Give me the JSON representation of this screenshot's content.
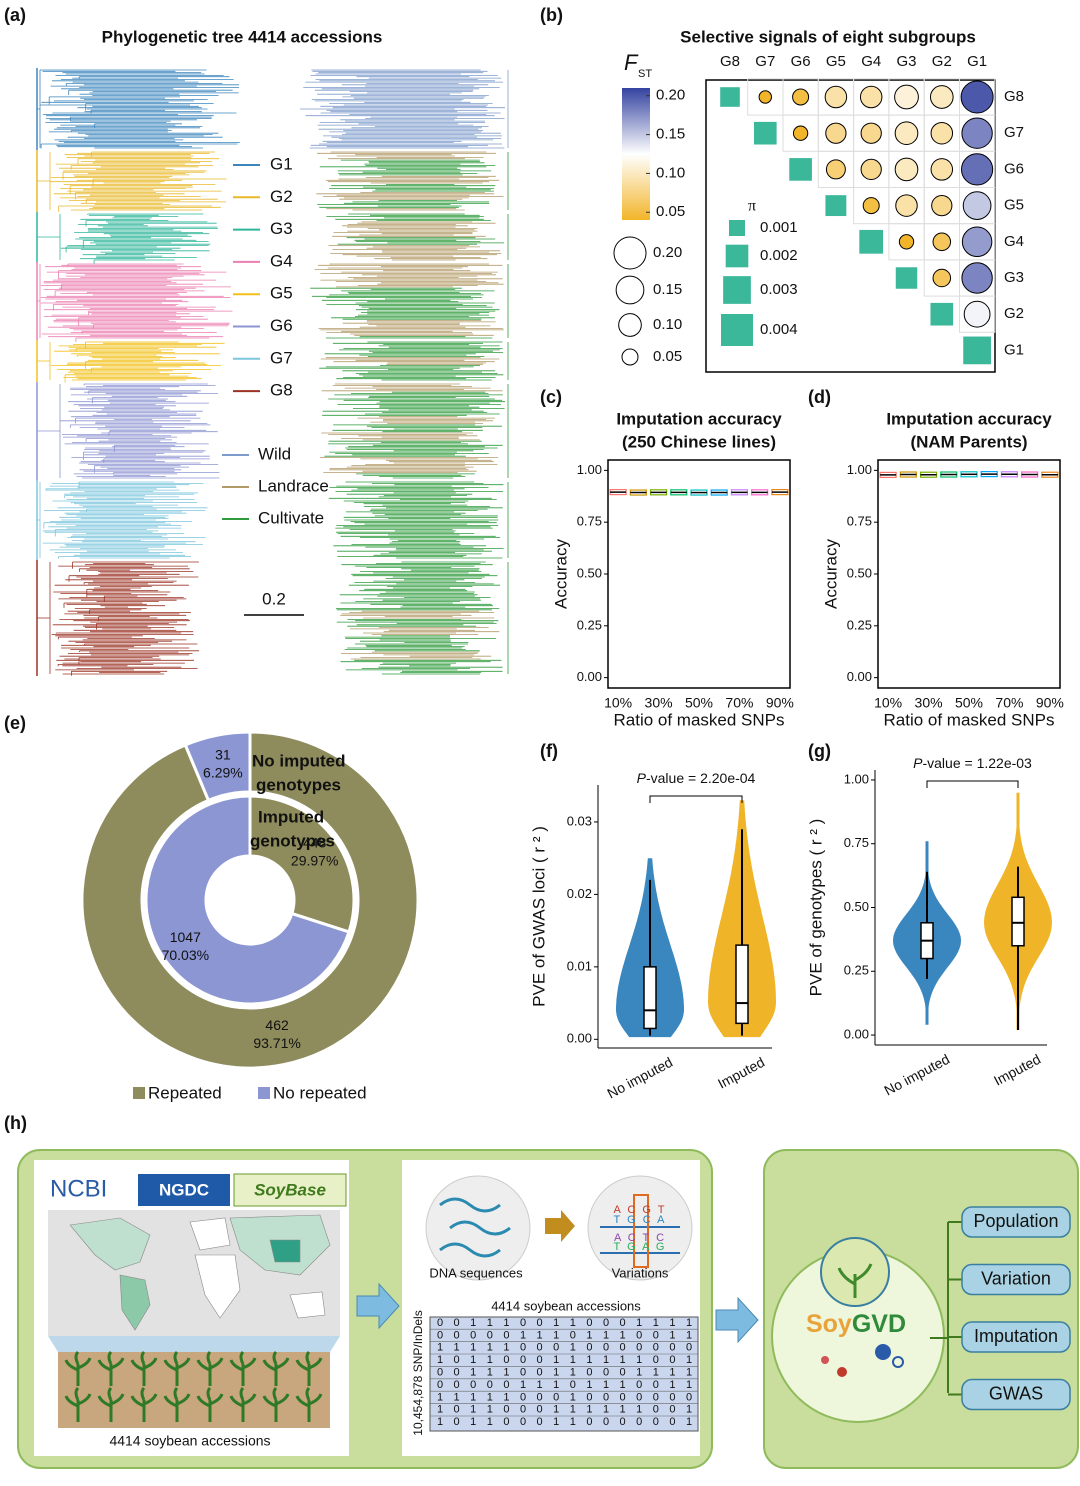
{
  "a": {
    "label": "(a)",
    "title": "Phylogenetic tree 4414 accessions",
    "groups": [
      {
        "name": "G1",
        "color": "#3d86bd"
      },
      {
        "name": "G2",
        "color": "#e8b82a"
      },
      {
        "name": "G3",
        "color": "#2fb59a"
      },
      {
        "name": "G4",
        "color": "#ec7fb0"
      },
      {
        "name": "G5",
        "color": "#f2c01a"
      },
      {
        "name": "G6",
        "color": "#8d95d2"
      },
      {
        "name": "G7",
        "color": "#7cc6de"
      },
      {
        "name": "G8",
        "color": "#9b3325"
      }
    ],
    "types": [
      {
        "name": "Wild",
        "color": "#7e9ccb"
      },
      {
        "name": "Landrace",
        "color": "#b39b68"
      },
      {
        "name": "Cultivate",
        "color": "#2f9b3c"
      }
    ],
    "scale_label": "0.2"
  },
  "b": {
    "label": "(b)",
    "title": "Selective signals of eight  subgroups",
    "fst_title": "F",
    "fst_sub": "ST",
    "fst_lim": [
      0.04,
      0.21
    ],
    "fst_ticks": [
      {
        "value": 0.2,
        "label": "0.20"
      },
      0.15,
      {
        "value": 0.1,
        "label": "0.10"
      },
      0.05
    ],
    "fst_colors": [
      "#f2b52a",
      "#ffffff",
      "#3443a0"
    ],
    "size_legend": [
      {
        "value": 0.2,
        "label": "0.20"
      },
      0.15,
      {
        "value": 0.1,
        "label": "0.10"
      },
      0.05
    ],
    "pi_title": "π",
    "pi_legend": [
      0.001,
      0.002,
      0.003,
      0.004
    ],
    "pi_color": "#3bb79a",
    "groups": [
      "G8",
      "G7",
      "G6",
      "G5",
      "G4",
      "G3",
      "G2",
      "G1"
    ],
    "fst": [
      [
        null,
        0.03,
        0.05,
        0.09,
        0.09,
        0.11,
        0.1,
        0.2
      ],
      [
        null,
        null,
        0.04,
        0.08,
        0.08,
        0.1,
        0.09,
        0.18
      ],
      [
        null,
        null,
        null,
        0.07,
        0.08,
        0.1,
        0.09,
        0.19
      ],
      [
        null,
        null,
        null,
        null,
        0.05,
        0.09,
        0.08,
        0.15
      ],
      [
        null,
        null,
        null,
        null,
        null,
        0.04,
        0.06,
        0.17
      ],
      [
        null,
        null,
        null,
        null,
        null,
        null,
        0.06,
        0.18
      ],
      [
        null,
        null,
        null,
        null,
        null,
        null,
        null,
        0.13
      ],
      [
        null,
        null,
        null,
        null,
        null,
        null,
        null,
        null
      ]
    ],
    "pi": [
      0.0015,
      0.002,
      0.002,
      0.0017,
      0.0022,
      0.0018,
      0.002,
      0.003
    ]
  },
  "c": {
    "label": "(c)",
    "type": "box",
    "title": [
      "Imputation accuracy",
      "(250 Chinese lines)"
    ],
    "categories": [
      "10%",
      null,
      "30%",
      null,
      "50%",
      null,
      "70%",
      null,
      "90%"
    ],
    "colors": [
      "#f8766d",
      "#cd9600",
      "#7cae00",
      "#00be67",
      "#00bfc4",
      "#00a9ff",
      "#c77cff",
      "#ff61cc",
      "#e7861b"
    ],
    "values": [
      0.895,
      0.893,
      0.894,
      0.894,
      0.893,
      0.893,
      0.894,
      0.894,
      0.895
    ],
    "ylim": [
      -0.05,
      1.05
    ],
    "yticks": [
      {
        "value": 0,
        "label": "0.00"
      },
      0.25,
      {
        "value": 0.5,
        "label": "0.50"
      },
      0.75,
      {
        "value": 1,
        "label": "1.00"
      }
    ],
    "xlabel": "Ratio of masked SNPs",
    "ylabel": "Accuracy"
  },
  "d": {
    "label": "(d)",
    "type": "box",
    "title": [
      "Imputation accuracy",
      "(NAM Parents)"
    ],
    "categories": [
      "10%",
      null,
      "30%",
      null,
      "50%",
      null,
      "70%",
      null,
      "90%"
    ],
    "colors": [
      "#f8766d",
      "#cd9600",
      "#7cae00",
      "#00be67",
      "#00bfc4",
      "#00a9ff",
      "#c77cff",
      "#ff61cc",
      "#e7861b"
    ],
    "values": [
      0.978,
      0.98,
      0.979,
      0.98,
      0.981,
      0.982,
      0.981,
      0.98,
      0.979
    ],
    "ylim": [
      -0.05,
      1.05
    ],
    "yticks": [
      {
        "value": 0,
        "label": "0.00"
      },
      0.25,
      {
        "value": 0.5,
        "label": "0.50"
      },
      0.75,
      {
        "value": 1,
        "label": "1.00"
      }
    ],
    "xlabel": "Ratio of masked SNPs",
    "ylabel": "Accuracy"
  },
  "e": {
    "label": "(e)",
    "type": "pie",
    "categories": [
      "Repeated",
      "No repeated"
    ],
    "colors": [
      "#8e8b5c",
      "#8c96d3"
    ],
    "outer": {
      "values": [
        462,
        31
      ],
      "percents": [
        93.71,
        6.29
      ],
      "percent_labels": [
        "93.71%",
        "6.29%"
      ]
    },
    "inner": {
      "values": [
        448,
        1047
      ],
      "percents": [
        29.97,
        70.03
      ],
      "percent_labels": [
        "29.97%",
        "70.03%"
      ]
    },
    "annotations": [
      "No imputed",
      "genotypes",
      "Imputed",
      "genotypes"
    ]
  },
  "f": {
    "label": "(f)",
    "type": "violin",
    "categories": [
      "No imputed",
      "Imputed"
    ],
    "colors": [
      "#3a87bf",
      "#f0b429"
    ],
    "stats": [
      {
        "min": 0.0003,
        "low": 0.0005,
        "q1": 0.0015,
        "median": 0.004,
        "q3": 0.01,
        "high": 0.022,
        "max": 0.025
      },
      {
        "min": 0.0003,
        "low": 0.0005,
        "q1": 0.0022,
        "median": 0.005,
        "q3": 0.013,
        "high": 0.029,
        "max": 0.033
      }
    ],
    "ylim": [
      -0.0012,
      0.0351
    ],
    "yticks": [
      {
        "value": 0,
        "label": "0.00"
      },
      0.01,
      0.02,
      0.03
    ],
    "ylabel": "PVE of GWAS loci ( r ² )",
    "p_italic": "P",
    "p_text": "-value = 2.20e-04"
  },
  "g": {
    "label": "(g)",
    "type": "violin",
    "categories": [
      "No imputed",
      "Imputed"
    ],
    "colors": [
      "#3a87bf",
      "#f0b429"
    ],
    "stats": [
      {
        "min": 0.04,
        "low": 0.22,
        "q1": 0.3,
        "median": 0.37,
        "q3": 0.44,
        "high": 0.64,
        "max": 0.76
      },
      {
        "min": 0.02,
        "low": 0.02,
        "q1": 0.35,
        "median": 0.44,
        "q3": 0.54,
        "high": 0.66,
        "max": 0.95
      }
    ],
    "ylim": [
      -0.039,
      1.039
    ],
    "yticks": [
      {
        "value": 0,
        "label": "0.00"
      },
      0.25,
      {
        "value": 0.5,
        "label": "0.50"
      },
      0.75,
      {
        "value": 1,
        "label": "1.00"
      }
    ],
    "ylabel": "PVE of genotypes ( r ² )",
    "p_italic": "P",
    "p_text": "-value = 1.22e-03"
  },
  "h": {
    "label": "(h)",
    "sources": [
      "NCBI",
      "NGDC",
      "SoyBase"
    ],
    "accessions": "4414 soybean accessions",
    "dna": "DNA sequences",
    "variations": "Variations",
    "variation_letters": [
      "A C G T",
      "T G C A",
      "A C T C",
      "T G A G"
    ],
    "matrix_title": "4414 soybean accessions",
    "matrix_axis": "10,454,878 SNP/InDels",
    "matrix": [
      [
        0,
        0,
        1,
        1,
        1,
        0,
        0,
        1,
        1,
        0,
        0,
        0,
        1,
        1,
        1,
        1
      ],
      [
        0,
        0,
        0,
        0,
        0,
        1,
        1,
        1,
        0,
        1,
        1,
        1,
        0,
        0,
        1,
        1
      ],
      [
        1,
        1,
        1,
        1,
        1,
        0,
        0,
        0,
        1,
        0,
        0,
        0,
        0,
        0,
        0,
        0
      ],
      [
        1,
        0,
        1,
        1,
        0,
        0,
        0,
        1,
        1,
        1,
        1,
        1,
        1,
        0,
        0,
        1
      ],
      [
        0,
        0,
        1,
        1,
        1,
        0,
        0,
        1,
        1,
        0,
        0,
        0,
        1,
        1,
        1,
        1
      ],
      [
        0,
        0,
        0,
        0,
        0,
        1,
        1,
        1,
        0,
        1,
        1,
        1,
        0,
        0,
        1,
        1
      ],
      [
        1,
        1,
        1,
        1,
        1,
        0,
        0,
        0,
        1,
        0,
        0,
        0,
        0,
        0,
        0,
        0
      ],
      [
        1,
        0,
        1,
        1,
        0,
        0,
        0,
        1,
        1,
        1,
        1,
        1,
        1,
        0,
        0,
        1
      ],
      [
        1,
        0,
        1,
        1,
        0,
        0,
        0,
        1,
        1,
        0,
        0,
        0,
        0,
        0,
        0,
        1
      ]
    ],
    "db_name_a": "Soy",
    "db_name_b": "GVD",
    "modules": [
      "Population",
      "Variation",
      "Imputation",
      "GWAS"
    ]
  }
}
